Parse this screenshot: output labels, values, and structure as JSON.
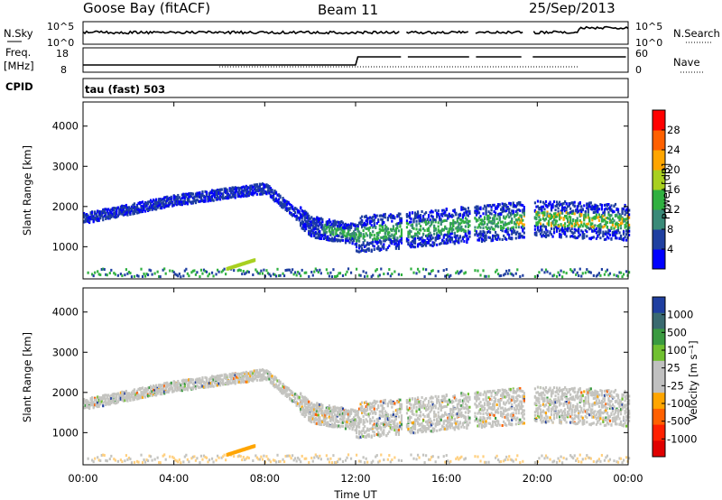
{
  "header": {
    "station": "Goose Bay (fitACF)",
    "beam": "Beam 11",
    "date": "25/Sep/2013"
  },
  "panels": {
    "nsky_label": "N.Sky",
    "nsky_ticks": [
      "10^5",
      "10^0"
    ],
    "nsearch_label": "N.Search",
    "nsearch_ticks": [
      "10^5",
      "10^0"
    ],
    "freq_label_1": "Freq.",
    "freq_label_2": "[MHz]",
    "freq_ticks": [
      "18",
      "8"
    ],
    "nave_label": "Nave",
    "nave_ticks": [
      "60",
      "0"
    ],
    "cpid_label": "CPID",
    "cpid_value": "tau (fast) 503"
  },
  "colors": {
    "power_scale": [
      "#0000ff",
      "#1f3fa0",
      "#3a8a78",
      "#30b040",
      "#a8d020",
      "#ffa500",
      "#ff6000",
      "#ff0000"
    ],
    "velocity_scale": [
      "#1f3fa0",
      "#3a6a70",
      "#3a9a40",
      "#70c030",
      "#c0c0c0",
      "#c0c0c0",
      "#ffa500",
      "#ff6000",
      "#ff2000",
      "#e00000"
    ]
  },
  "chart_data": [
    {
      "type": "heatmap",
      "name": "power",
      "ylabel": "Slant Range [km]",
      "yticks": [
        "4000",
        "3000",
        "2000",
        "1000"
      ],
      "ylim": [
        200,
        4600
      ],
      "xlim": [
        0,
        24
      ],
      "colorbar_label": "Power [dB]",
      "colorbar_ticks": [
        "28",
        "24",
        "20",
        "16",
        "12",
        "8",
        "4"
      ],
      "colorbar_range": [
        0,
        32
      ],
      "data_gaps_hours": [
        [
          14.0,
          14.2
        ],
        [
          17.0,
          17.2
        ],
        [
          19.4,
          19.8
        ]
      ],
      "echo_band_km": [
        [
          0,
          1700
        ],
        [
          4,
          2150
        ],
        [
          8,
          2450
        ],
        [
          10,
          1500
        ],
        [
          12,
          1300
        ],
        [
          16,
          1500
        ],
        [
          20,
          1700
        ],
        [
          24,
          1600
        ]
      ]
    },
    {
      "type": "heatmap",
      "name": "velocity",
      "ylabel": "Slant Range [km]",
      "yticks": [
        "4000",
        "3000",
        "2000",
        "1000"
      ],
      "ylim": [
        200,
        4600
      ],
      "xlim": [
        0,
        24
      ],
      "colorbar_label": "Velocity [m s⁻¹]",
      "colorbar_ticks": [
        "1000",
        "500",
        "100",
        "25",
        "-25",
        "-100",
        "-500",
        "-1000"
      ]
    }
  ],
  "xaxis": {
    "ticks": [
      "00:00",
      "04:00",
      "08:00",
      "12:00",
      "16:00",
      "20:00",
      "00:00"
    ],
    "label": "Time UT"
  }
}
